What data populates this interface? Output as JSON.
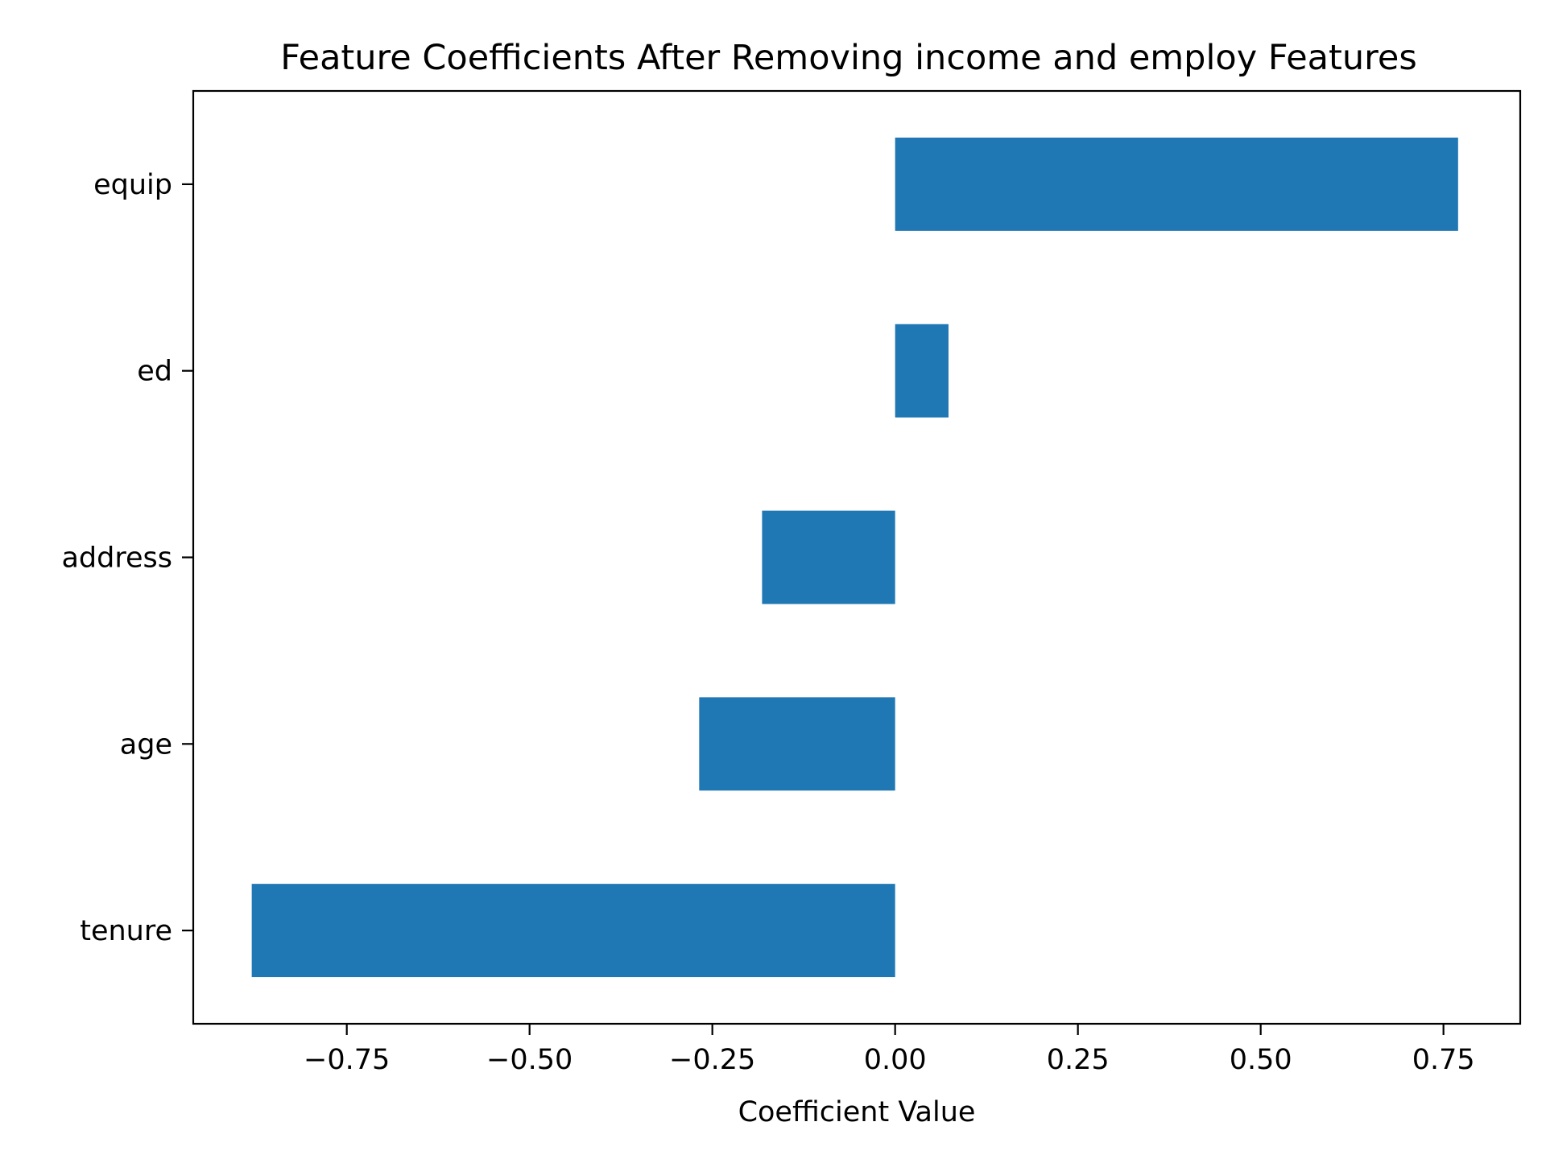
{
  "chart_data": {
    "type": "bar",
    "orientation": "horizontal",
    "title": "Feature Coefficients After Removing income and employ Features",
    "xlabel": "Coefficient Value",
    "ylabel": "",
    "categories": [
      "equip",
      "ed",
      "address",
      "age",
      "tenure"
    ],
    "values": [
      0.77,
      0.073,
      -0.182,
      -0.268,
      -0.88
    ],
    "xlim": [
      -0.96,
      0.855
    ],
    "xticks": [
      -0.75,
      -0.5,
      -0.25,
      0.0,
      0.25,
      0.5,
      0.75
    ],
    "xtick_labels": [
      "−0.75",
      "−0.50",
      "−0.25",
      "0.00",
      "0.25",
      "0.50",
      "0.75"
    ],
    "grid": false,
    "legend": "none",
    "bar_color": "#1f77b4"
  }
}
